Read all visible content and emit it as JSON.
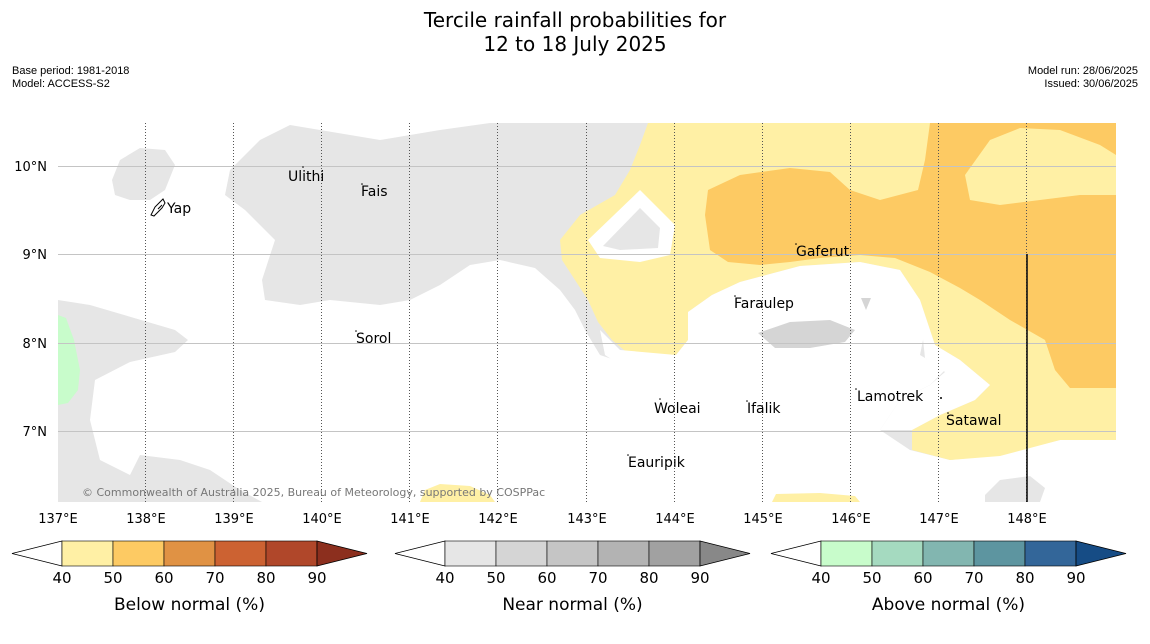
{
  "title_line1": "Tercile rainfall probabilities for",
  "title_line2": "12 to 18 July 2025",
  "meta_left": {
    "base_period": "Base period: 1981-2018",
    "model": "Model: ACCESS-S2"
  },
  "meta_right": {
    "model_run": "Model run: 28/06/2025",
    "issued": "Issued: 30/06/2025"
  },
  "map": {
    "lon_ticks": [
      "137°E",
      "138°E",
      "139°E",
      "140°E",
      "141°E",
      "142°E",
      "143°E",
      "144°E",
      "145°E",
      "146°E",
      "147°E",
      "148°E"
    ],
    "lat_ticks": [
      "10°N",
      "9°N",
      "8°N",
      "7°N"
    ],
    "places": [
      "Yap",
      "Ulithi",
      "Fais",
      "Sorol",
      "Gaferut",
      "Faraulep",
      "Woleai",
      "Ifalik",
      "Lamotrek",
      "Satawal",
      "Eauripik"
    ],
    "copyright": "© Commonwealth of Australia 2025, Bureau of Meteorology, supported by COSPPac"
  },
  "colorbars": [
    {
      "label": "Below normal (%)",
      "ticks": [
        "40",
        "50",
        "60",
        "70",
        "80",
        "90"
      ],
      "colors": [
        "#fff0a5",
        "#fdca63",
        "#e09244",
        "#cc6232",
        "#b0472a",
        "#8c2f1e"
      ]
    },
    {
      "label": "Near normal (%)",
      "ticks": [
        "40",
        "50",
        "60",
        "70",
        "80",
        "90"
      ],
      "colors": [
        "#e6e6e6",
        "#d5d5d5",
        "#c5c5c5",
        "#b3b3b3",
        "#a1a1a1",
        "#888888"
      ]
    },
    {
      "label": "Above normal (%)",
      "ticks": [
        "40",
        "50",
        "60",
        "70",
        "80",
        "90"
      ],
      "colors": [
        "#c8fccb",
        "#a5dac0",
        "#82b6b0",
        "#5d95a0",
        "#336699",
        "#164c85"
      ]
    }
  ]
}
